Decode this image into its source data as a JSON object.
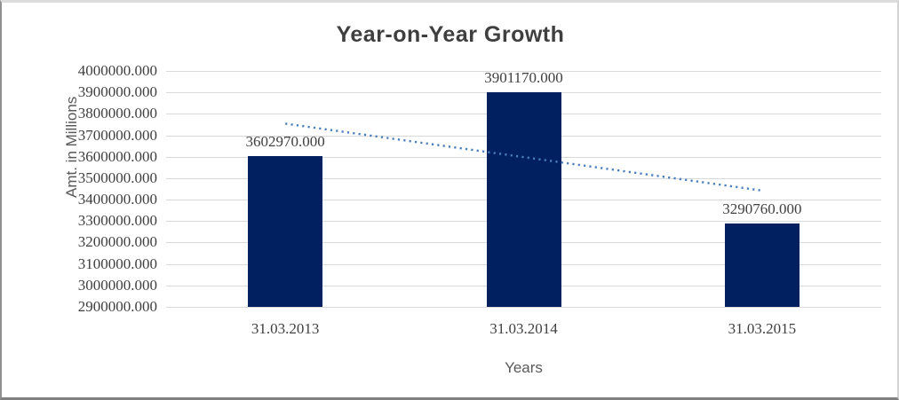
{
  "chart_data": {
    "type": "bar",
    "title": "Year-on-Year Growth",
    "xlabel": "Years",
    "ylabel": "Amt. in Millions",
    "categories": [
      "31.03.2013",
      "31.03.2014",
      "31.03.2015"
    ],
    "values": [
      3602970,
      3901170,
      3290760
    ],
    "data_labels": [
      "3602970.000",
      "3901170.000",
      "3290760.000"
    ],
    "y_ticks": [
      "4000000.000",
      "3900000.000",
      "3800000.000",
      "3700000.000",
      "3600000.000",
      "3500000.000",
      "3400000.000",
      "3300000.000",
      "3200000.000",
      "3100000.000",
      "3000000.000",
      "2900000.000"
    ],
    "ylim": [
      2900000,
      4000000
    ],
    "y_tick_step": 100000,
    "grid": true,
    "legend": "none",
    "bar_color": "#002060",
    "gridline_color": "#d9d9d9",
    "trendline": {
      "type": "linear",
      "style": "dotted",
      "color": "#4a7ebb",
      "endpoint_values": [
        3754405,
        3442195
      ]
    }
  }
}
